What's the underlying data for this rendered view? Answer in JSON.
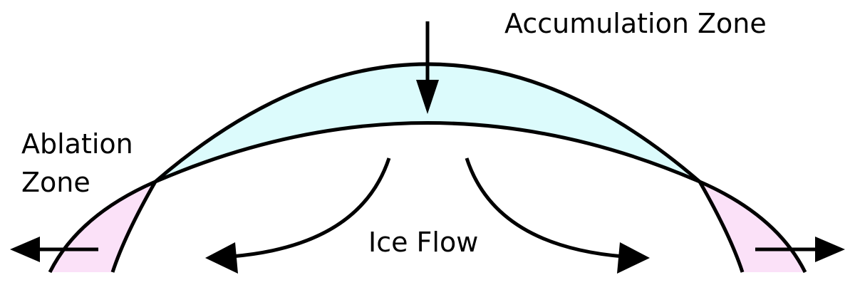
{
  "labels": {
    "accumulation_zone": "Accumulation Zone",
    "ablation_zone_line1": "Ablation",
    "ablation_zone_line2": "Zone",
    "ice_flow": "Ice Flow"
  },
  "colors": {
    "accumulation_fill": "#dcfbfc",
    "ablation_fill": "#fbe1f8",
    "stroke": "#000000"
  }
}
